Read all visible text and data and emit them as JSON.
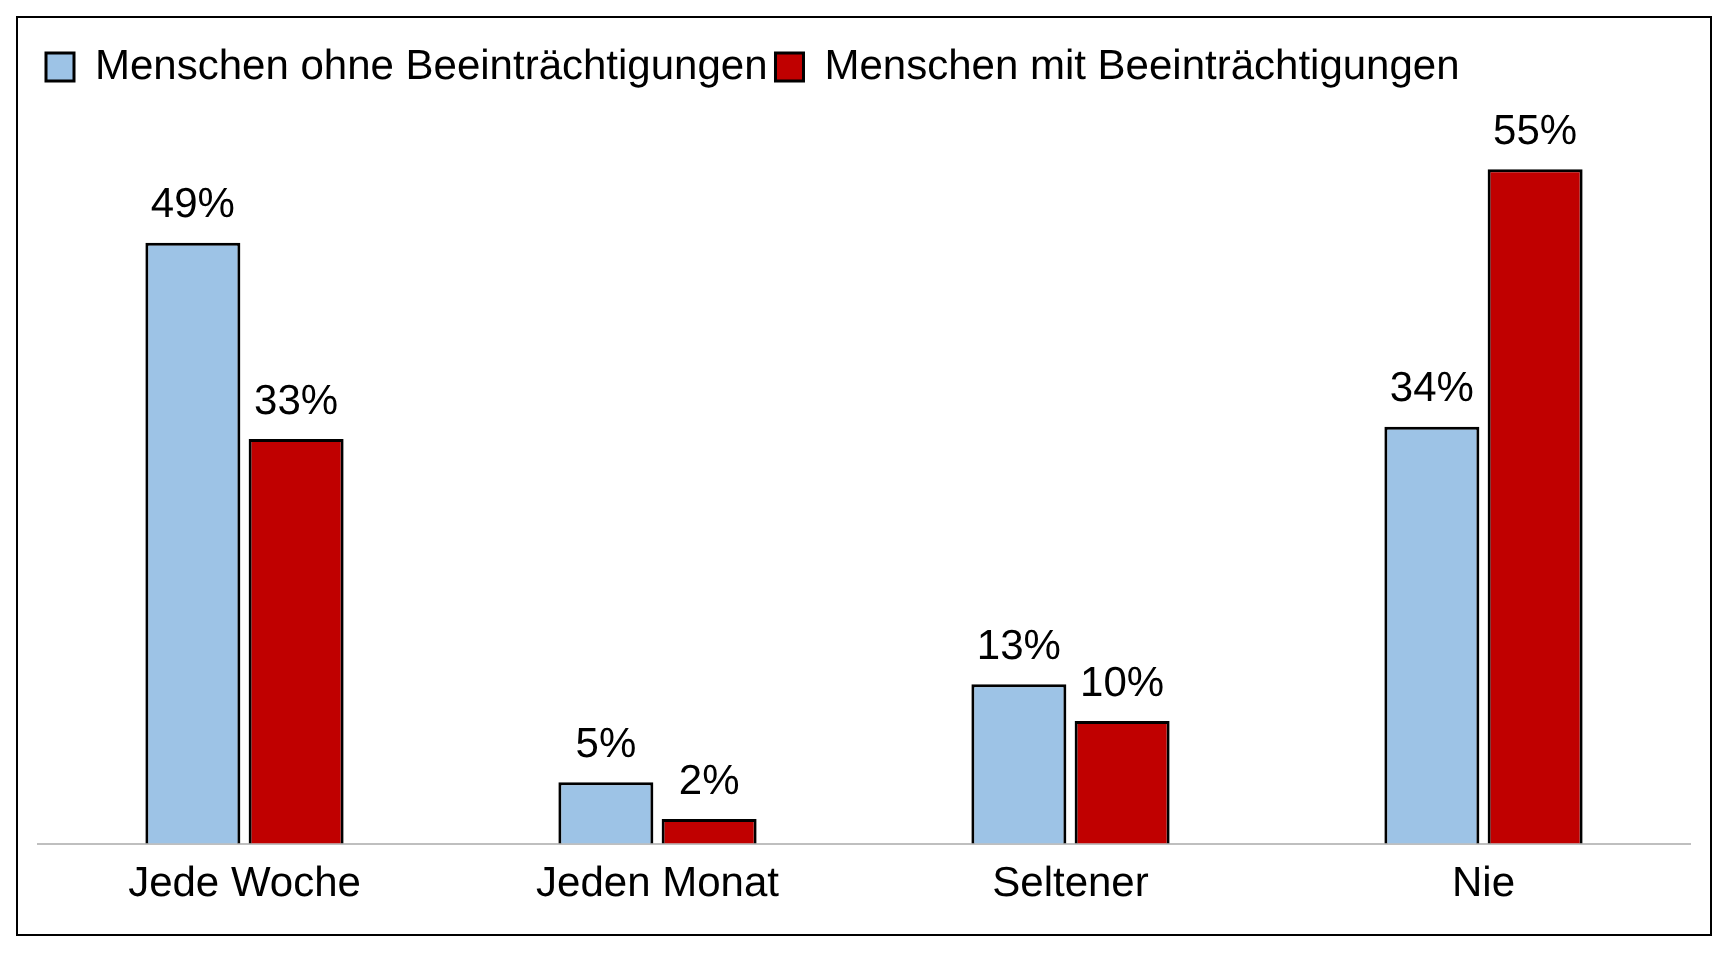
{
  "chart_data": {
    "type": "bar",
    "categories": [
      "Jede Woche",
      "Jeden Monat",
      "Seltener",
      "Nie"
    ],
    "series": [
      {
        "name": "Menschen ohne Beeinträchtigungen",
        "color": "#9dc3e6",
        "values": [
          49,
          5,
          13,
          34
        ],
        "value_labels": [
          "49%",
          "5%",
          "13%",
          "34%"
        ]
      },
      {
        "name": "Menschen mit Beeinträchtigungen",
        "color": "#c00000",
        "values": [
          33,
          2,
          10,
          55
        ],
        "value_labels": [
          "33%",
          "2%",
          "10%",
          "55%"
        ]
      }
    ],
    "legend": "top left",
    "grid": false
  }
}
